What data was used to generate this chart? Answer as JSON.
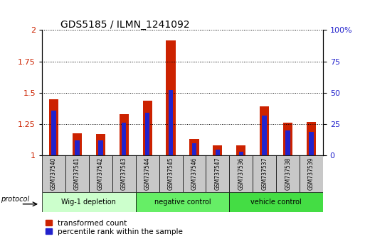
{
  "title": "GDS5185 / ILMN_1241092",
  "samples": [
    "GSM737540",
    "GSM737541",
    "GSM737542",
    "GSM737543",
    "GSM737544",
    "GSM737545",
    "GSM737546",
    "GSM737547",
    "GSM737536",
    "GSM737537",
    "GSM737538",
    "GSM737539"
  ],
  "transformed_count": [
    1.45,
    1.18,
    1.17,
    1.33,
    1.44,
    1.92,
    1.13,
    1.08,
    1.08,
    1.39,
    1.26,
    1.27
  ],
  "percentile_rank": [
    0.36,
    0.12,
    0.12,
    0.26,
    0.34,
    0.52,
    0.1,
    0.05,
    0.03,
    0.32,
    0.2,
    0.19
  ],
  "groups": [
    {
      "label": "Wig-1 depletion",
      "start": 0,
      "end": 4,
      "color": "#ccffcc"
    },
    {
      "label": "negative control",
      "start": 4,
      "end": 8,
      "color": "#66ee66"
    },
    {
      "label": "vehicle control",
      "start": 8,
      "end": 12,
      "color": "#44dd44"
    }
  ],
  "red_color": "#cc2200",
  "blue_color": "#2222cc",
  "ylim_left": [
    1.0,
    2.0
  ],
  "ylim_right": [
    0,
    100
  ],
  "yticks_left": [
    1.0,
    1.25,
    1.5,
    1.75,
    2.0
  ],
  "ytick_labels_left": [
    "1",
    "1.25",
    "1.5",
    "1.75",
    "2"
  ],
  "yticks_right": [
    0,
    25,
    50,
    75,
    100
  ],
  "ytick_labels_right": [
    "0",
    "25",
    "50",
    "75",
    "100%"
  ],
  "bar_width": 0.4,
  "protocol_label": "protocol",
  "legend_red": "transformed count",
  "legend_blue": "percentile rank within the sample",
  "sample_box_color": "#c8c8c8",
  "title_fontsize": 10
}
